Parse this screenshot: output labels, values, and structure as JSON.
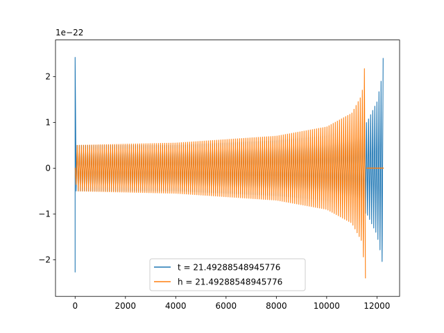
{
  "chart_data": {
    "type": "line",
    "title": "",
    "xlabel": "",
    "ylabel": "",
    "offset_text": "1e−22",
    "xlim": [
      -780,
      12900
    ],
    "ylim": [
      -2.8,
      2.8
    ],
    "x_ticks": [
      0,
      2000,
      4000,
      6000,
      8000,
      10000,
      12000
    ],
    "x_tick_labels": [
      "0",
      "2000",
      "4000",
      "6000",
      "8000",
      "10000",
      "12000"
    ],
    "y_ticks": [
      -2,
      -1,
      0,
      1,
      2
    ],
    "y_tick_labels": [
      "−2",
      "−1",
      "0",
      "1",
      "2"
    ],
    "grid": false,
    "legend_position": "lower-center",
    "series": [
      {
        "name": "t = 21.49288548945776",
        "color": "#1f77b4",
        "x_start": 0,
        "x_end": 12270,
        "ramp_end": 0,
        "amplitude_profile": [
          [
            0,
            2.42
          ],
          [
            40,
            0.5
          ],
          [
            4000,
            0.5
          ],
          [
            8000,
            0.6
          ],
          [
            10000,
            0.7
          ],
          [
            11000,
            0.85
          ],
          [
            11600,
            1.0
          ],
          [
            12000,
            1.45
          ],
          [
            12200,
            2.0
          ],
          [
            12270,
            2.62
          ]
        ],
        "spike": {
          "x": 0,
          "max": 2.42,
          "min": -2.27
        }
      },
      {
        "name": "h = 21.49288548945776",
        "color": "#ff7f0e",
        "x_start": 0,
        "x_end": 11580,
        "ramp_end": 50,
        "amplitude_profile": [
          [
            0,
            0.1
          ],
          [
            50,
            0.5
          ],
          [
            4000,
            0.55
          ],
          [
            8000,
            0.7
          ],
          [
            10000,
            0.9
          ],
          [
            11000,
            1.2
          ],
          [
            11400,
            1.6
          ],
          [
            11580,
            2.62
          ]
        ],
        "flat_after": {
          "from": 11580,
          "to": 12270,
          "value": 0
        }
      }
    ]
  }
}
